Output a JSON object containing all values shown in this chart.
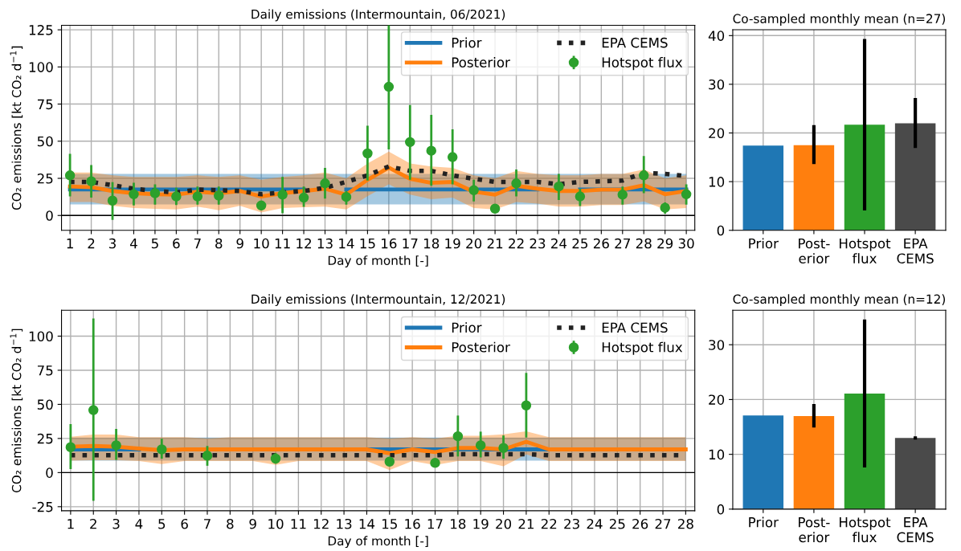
{
  "chart_data": [
    {
      "type": "line",
      "title": "Daily emissions (Intermountain, 06/2021)",
      "xlabel": "Day of month [-]",
      "ylabel": "CO₂ emissions [kt CO₂ d$^{−1}$]",
      "xlim": [
        0.6,
        30.4
      ],
      "xticks": [
        1,
        2,
        3,
        4,
        5,
        6,
        7,
        8,
        9,
        10,
        11,
        12,
        13,
        14,
        15,
        16,
        17,
        18,
        19,
        20,
        21,
        22,
        23,
        24,
        25,
        26,
        27,
        28,
        29,
        30
      ],
      "ylim": [
        -10,
        128
      ],
      "yticks": [
        0,
        25,
        50,
        75,
        100,
        125
      ],
      "grid": true,
      "legend": "top right",
      "ref_lines": [
        {
          "axis": "y",
          "value": 0,
          "color": "#000000"
        }
      ],
      "series": [
        {
          "name": "Prior",
          "type": "line",
          "color": "#1f77b4",
          "x": [
            1,
            2,
            3,
            4,
            5,
            6,
            7,
            8,
            9,
            10,
            11,
            12,
            13,
            14,
            15,
            16,
            17,
            18,
            19,
            20,
            21,
            22,
            23,
            24,
            25,
            26,
            27,
            28,
            29,
            30
          ],
          "values": [
            17.5,
            17.5,
            17.5,
            17.5,
            17.5,
            17.5,
            17.5,
            17.5,
            17.5,
            17.5,
            17.5,
            17.5,
            null,
            17.5,
            17.5,
            17.5,
            17.5,
            17.5,
            17.5,
            17.5,
            17.5,
            17.5,
            17.5,
            null,
            17.5,
            17.5,
            17.5,
            17.5,
            17.5,
            17.5
          ],
          "lower": [
            7.5,
            7.5,
            7.5,
            7.5,
            7.5,
            7.5,
            7.5,
            7.5,
            7.5,
            7.5,
            7.5,
            7.5,
            7.5,
            7.5,
            7.5,
            7.5,
            7.5,
            7.5,
            7.5,
            7.5,
            7.5,
            7.5,
            7.5,
            7.5,
            7.5,
            7.5,
            7.5,
            7.5,
            7.5,
            7.5
          ],
          "upper": [
            28,
            28,
            28,
            28,
            28,
            28,
            28,
            28,
            28,
            28,
            28,
            28,
            28,
            28,
            28,
            28,
            28,
            28,
            28,
            28,
            28,
            28,
            28,
            28,
            28,
            28,
            28,
            28,
            28,
            28
          ]
        },
        {
          "name": "Posterior",
          "type": "line",
          "color": "#ff7f0e",
          "x": [
            1,
            2,
            3,
            4,
            5,
            6,
            7,
            8,
            9,
            10,
            11,
            12,
            13,
            14,
            15,
            16,
            17,
            18,
            19,
            20,
            21,
            22,
            23,
            24,
            25,
            26,
            27,
            28,
            29,
            30
          ],
          "values": [
            19.5,
            19,
            16.5,
            15,
            14.3,
            14,
            16,
            15,
            16.5,
            12.8,
            15,
            16.5,
            18,
            14,
            24,
            32.3,
            24.7,
            22,
            22.6,
            16,
            14,
            20,
            18,
            16.5,
            16.5,
            17.4,
            17.4,
            20.4,
            14.3,
            16.5
          ],
          "lower": [
            9,
            9,
            6.5,
            5,
            4.5,
            4,
            6,
            3.5,
            6.5,
            2,
            5,
            5.5,
            6,
            4,
            13,
            21,
            14,
            11,
            12,
            5,
            4,
            9,
            8,
            6,
            6,
            7,
            7,
            9.5,
            4,
            5
          ],
          "upper": [
            29,
            29,
            27,
            26,
            26,
            26,
            27,
            26,
            27,
            24,
            26,
            27,
            29,
            25,
            35,
            43,
            35,
            33,
            32,
            27,
            25,
            30,
            28,
            27,
            27,
            28,
            28,
            31,
            25,
            27
          ]
        },
        {
          "name": "EPA CEMS",
          "type": "line",
          "line_style": "dotted",
          "color": "#222222",
          "x": [
            1,
            2,
            3,
            4,
            5,
            6,
            7,
            8,
            9,
            10,
            11,
            12,
            13,
            14,
            15,
            16,
            17,
            18,
            19,
            20,
            21,
            22,
            23,
            24,
            25,
            26,
            27,
            28,
            29,
            30
          ],
          "values": [
            22.6,
            22.6,
            20.4,
            18,
            16.5,
            15.5,
            17.4,
            17,
            16.5,
            14.3,
            15.5,
            16.5,
            18.6,
            22.6,
            27,
            33,
            30,
            30,
            27,
            24.7,
            22.6,
            22.6,
            22.6,
            21,
            22.6,
            23,
            23.5,
            28.7,
            28,
            26.5
          ]
        },
        {
          "name": "Hotspot flux",
          "type": "scatter",
          "marker": "circle",
          "color": "#2ca02c",
          "x": [
            1,
            2,
            3,
            4,
            5,
            6,
            7,
            8,
            10,
            11,
            12,
            13,
            14,
            15,
            16,
            17,
            18,
            19,
            20,
            21,
            22,
            24,
            25,
            27,
            28,
            29,
            30
          ],
          "values": [
            27,
            23,
            10,
            14.3,
            15,
            12.8,
            12.8,
            13.4,
            6.7,
            14,
            12,
            21.6,
            12.5,
            41.8,
            86.6,
            49.4,
            43.6,
            39.3,
            17,
            4.6,
            21.6,
            19.5,
            12.8,
            14,
            27,
            5.2,
            14.3
          ],
          "errors": [
            [
              12.8,
              41.5
            ],
            [
              12,
              34
            ],
            [
              -3,
              22.5
            ],
            [
              6.7,
              22
            ],
            [
              7.3,
              21
            ],
            [
              7,
              18.6
            ],
            [
              7.3,
              19.5
            ],
            [
              7.3,
              19.5
            ],
            [
              3.4,
              9.8
            ],
            [
              1.5,
              26
            ],
            [
              5.8,
              19.5
            ],
            [
              11.3,
              32
            ],
            [
              7.3,
              16.5
            ],
            [
              23.5,
              60.4
            ],
            [
              44.5,
              129
            ],
            [
              24,
              74.4
            ],
            [
              20,
              67.7
            ],
            [
              21,
              58
            ],
            [
              9.5,
              24
            ],
            [
              2.7,
              6.4
            ],
            [
              12.8,
              31
            ],
            [
              10.4,
              28
            ],
            [
              6.4,
              18
            ],
            [
              7.3,
              19.5
            ],
            [
              15,
              40
            ],
            [
              1.2,
              8.8
            ],
            [
              7.3,
              21
            ]
          ]
        }
      ]
    },
    {
      "type": "bar",
      "title": "Co-sampled monthly mean (n=27)",
      "categories": [
        "Prior",
        "Post-\nerior",
        "Hotspot\nflux",
        "EPA\nCEMS"
      ],
      "values": [
        17.4,
        17.5,
        21.7,
        22
      ],
      "colors": [
        "#1f77b4",
        "#ff7f0e",
        "#2ca02c",
        "#4a4a4a"
      ],
      "errors": [
        null,
        [
          13.6,
          21.6
        ],
        [
          4.1,
          39.3
        ],
        [
          16.9,
          27.2
        ]
      ],
      "ylim": [
        0,
        41.2
      ],
      "yticks": [
        0,
        10,
        20,
        30,
        40
      ],
      "grid": true
    },
    {
      "type": "line",
      "title": "Daily emissions (Intermountain, 12/2021)",
      "xlabel": "Day of month [-]",
      "ylabel": "CO₂ emissions [kt CO₂ d$^{−1}$]",
      "xlim": [
        0.6,
        28.4
      ],
      "xticks": [
        1,
        2,
        3,
        4,
        5,
        6,
        7,
        8,
        9,
        10,
        11,
        12,
        13,
        14,
        15,
        16,
        17,
        18,
        19,
        20,
        21,
        22,
        23,
        24,
        25,
        26,
        27,
        28
      ],
      "ylim": [
        -28,
        119
      ],
      "yticks": [
        -25,
        0,
        25,
        50,
        75,
        100
      ],
      "grid": true,
      "legend": "top right",
      "ref_lines": [
        {
          "axis": "y",
          "value": 0,
          "color": "#000000"
        }
      ],
      "series": [
        {
          "name": "Prior",
          "type": "line",
          "color": "#1f77b4",
          "x": [
            1,
            2,
            3,
            4,
            5,
            6,
            7,
            8,
            9,
            10,
            11,
            12,
            13,
            14,
            15,
            16,
            17,
            18,
            19,
            20,
            21,
            22,
            23,
            24,
            25,
            26,
            27,
            28
          ],
          "values": [
            17,
            17,
            17,
            17,
            null,
            null,
            null,
            null,
            null,
            null,
            null,
            null,
            null,
            17,
            17,
            17,
            17,
            17,
            17,
            17,
            17,
            17,
            null,
            null,
            null,
            null,
            null,
            null
          ],
          "lower": [
            8.7,
            8.7,
            8.7,
            8.7,
            8.7,
            8.7,
            8.7,
            8.7,
            8.7,
            8.7,
            8.7,
            8.7,
            8.7,
            8.7,
            8.7,
            8.7,
            8.7,
            8.7,
            8.7,
            8.7,
            8.7,
            8.7,
            8.7,
            8.7,
            8.7,
            8.7,
            8.7,
            8.7
          ],
          "upper": [
            25.7,
            25.7,
            25.7,
            25.7,
            25.7,
            25.7,
            25.7,
            25.7,
            25.7,
            25.7,
            25.7,
            25.7,
            25.7,
            25.7,
            25.7,
            25.7,
            25.7,
            25.7,
            25.7,
            25.7,
            25.7,
            25.7,
            25.7,
            25.7,
            25.7,
            25.7,
            25.7,
            25.7
          ]
        },
        {
          "name": "Posterior",
          "type": "line",
          "color": "#ff7f0e",
          "x": [
            1,
            2,
            3,
            4,
            5,
            6,
            7,
            8,
            9,
            10,
            11,
            12,
            13,
            14,
            15,
            16,
            17,
            18,
            19,
            20,
            21,
            22,
            23,
            24,
            25,
            26,
            27,
            28
          ],
          "values": [
            19,
            19.5,
            19,
            17.6,
            16.4,
            17,
            17,
            17,
            17,
            17,
            17,
            17,
            17,
            17,
            14.2,
            17,
            15,
            18,
            18,
            17,
            22.6,
            17,
            17,
            17,
            17,
            17,
            17,
            17
          ],
          "lower": [
            8.7,
            9,
            9,
            8.5,
            6.2,
            8.5,
            8.5,
            8.5,
            8.5,
            5.6,
            8.5,
            8.5,
            8.5,
            8.5,
            1.9,
            8.5,
            5.5,
            8.5,
            8.5,
            4.6,
            13.3,
            8.5,
            8.5,
            8.5,
            8.5,
            8.5,
            8.5,
            8.5
          ],
          "upper": [
            26.3,
            27.9,
            27.9,
            26,
            26,
            26,
            25,
            26,
            26,
            26,
            26,
            26,
            26,
            26,
            25,
            26,
            25,
            27,
            27,
            28,
            30.3,
            26,
            26,
            26,
            26,
            26,
            26,
            26
          ]
        },
        {
          "name": "EPA CEMS",
          "type": "line",
          "line_style": "dotted",
          "color": "#222222",
          "x": [
            1,
            2,
            3,
            4,
            5,
            6,
            7,
            8,
            9,
            10,
            11,
            12,
            13,
            14,
            15,
            16,
            17,
            18,
            19,
            20,
            21,
            22,
            23,
            24,
            25,
            26,
            27,
            28
          ],
          "values": [
            12.7,
            12.7,
            12.7,
            12.7,
            12.7,
            12.7,
            12.7,
            12.7,
            12.7,
            12.7,
            12.7,
            12.7,
            12.7,
            12.7,
            12.7,
            12.7,
            12.7,
            13.5,
            13.5,
            13.5,
            13.5,
            12.7,
            12.7,
            12.7,
            12.7,
            12.7,
            12.7,
            12.7
          ]
        },
        {
          "name": "Hotspot flux",
          "type": "scatter",
          "marker": "circle",
          "color": "#2ca02c",
          "x": [
            1,
            2,
            3,
            5,
            7,
            10,
            15,
            17,
            18,
            19,
            20,
            21
          ],
          "values": [
            18.6,
            45.8,
            20,
            17,
            12.4,
            10.2,
            8,
            7.1,
            26.6,
            20,
            18,
            49.2
          ],
          "errors": [
            [
              2.5,
              35.6
            ],
            [
              -20.7,
              113
            ],
            [
              9.3,
              32
            ],
            [
              10.2,
              24.8
            ],
            [
              5,
              19.5
            ],
            [
              6.5,
              14.2
            ],
            [
              5.6,
              10.8
            ],
            [
              4.6,
              10.2
            ],
            [
              11.8,
              41.8
            ],
            [
              11.1,
              30
            ],
            [
              10.2,
              27.2
            ],
            [
              25.7,
              73
            ]
          ]
        }
      ]
    },
    {
      "type": "bar",
      "title": "Co-sampled monthly mean (n=12)",
      "categories": [
        "Prior",
        "Post-\nerior",
        "Hotspot\nflux",
        "EPA\nCEMS"
      ],
      "values": [
        17.1,
        17,
        21.1,
        13
      ],
      "colors": [
        "#1f77b4",
        "#ff7f0e",
        "#2ca02c",
        "#4a4a4a"
      ],
      "errors": [
        null,
        [
          14.9,
          19.2
        ],
        [
          7.6,
          34.6
        ],
        [
          12.7,
          13.3
        ]
      ],
      "ylim": [
        0,
        36.3
      ],
      "yticks": [
        0,
        10,
        20,
        30
      ],
      "grid": true
    }
  ]
}
